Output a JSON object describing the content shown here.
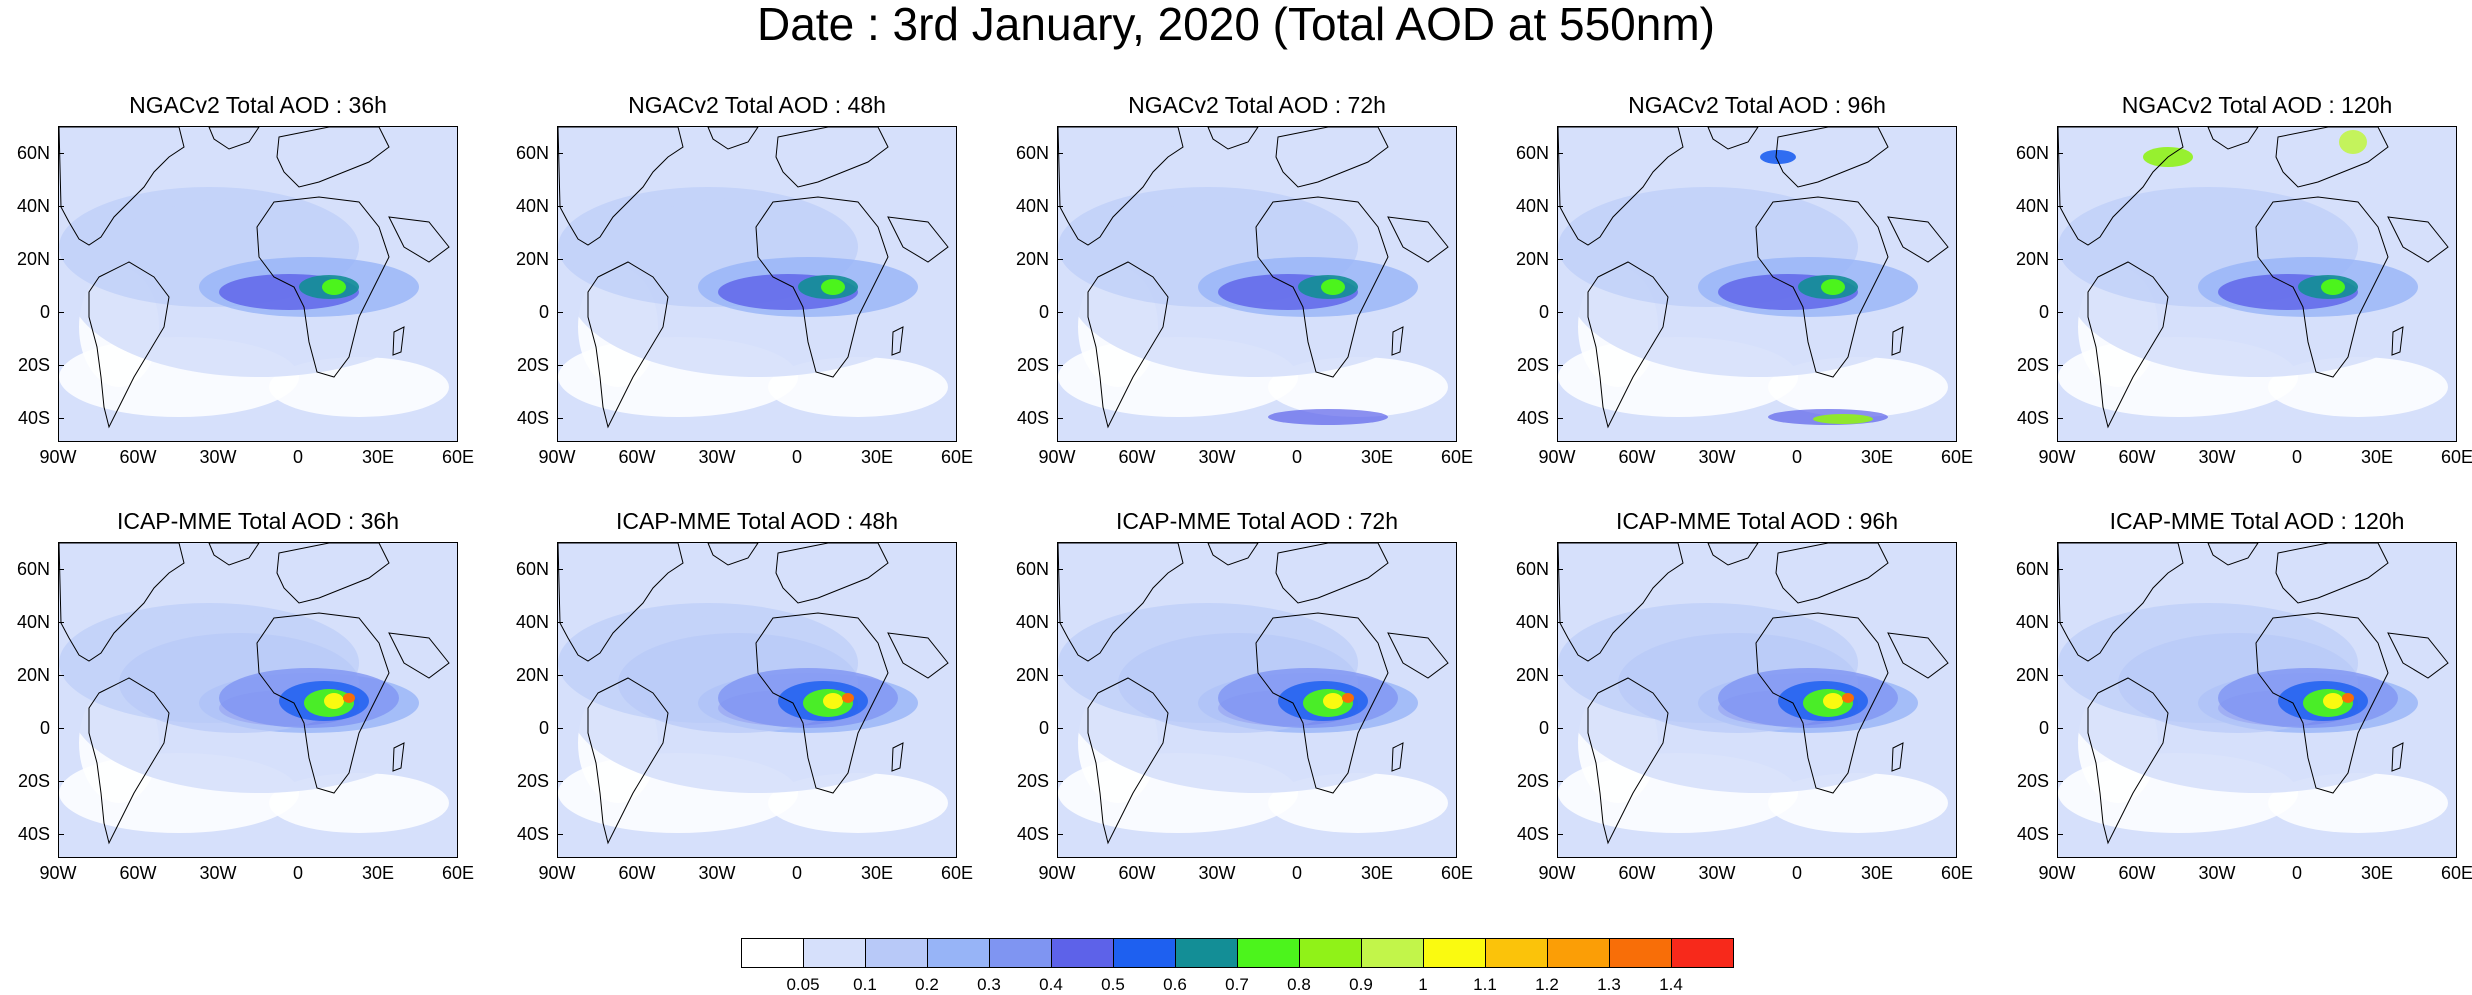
{
  "title": "Date : 3rd January, 2020 (Total AOD at 550nm)",
  "panels": [
    {
      "model": "NGACv2",
      "title": "NGACv2 Total AOD : 36h",
      "lead": "36h"
    },
    {
      "model": "NGACv2",
      "title": "NGACv2 Total AOD : 48h",
      "lead": "48h"
    },
    {
      "model": "NGACv2",
      "title": "NGACv2 Total AOD : 72h",
      "lead": "72h"
    },
    {
      "model": "NGACv2",
      "title": "NGACv2 Total AOD : 96h",
      "lead": "96h"
    },
    {
      "model": "NGACv2",
      "title": "NGACv2 Total AOD : 120h",
      "lead": "120h"
    },
    {
      "model": "ICAP-MME",
      "title": "ICAP-MME Total AOD : 36h",
      "lead": "36h"
    },
    {
      "model": "ICAP-MME",
      "title": "ICAP-MME Total AOD : 48h",
      "lead": "48h"
    },
    {
      "model": "ICAP-MME",
      "title": "ICAP-MME Total AOD : 72h",
      "lead": "72h"
    },
    {
      "model": "ICAP-MME",
      "title": "ICAP-MME Total AOD : 96h",
      "lead": "96h"
    },
    {
      "model": "ICAP-MME",
      "title": "ICAP-MME Total AOD : 120h",
      "lead": "120h"
    }
  ],
  "axes": {
    "lat_ticks": [
      "60N",
      "40N",
      "20N",
      "0",
      "20S",
      "40S"
    ],
    "lon_ticks": [
      "90W",
      "60W",
      "30W",
      "0",
      "30E",
      "60E"
    ]
  },
  "colorbar": {
    "labels": [
      "0.05",
      "0.1",
      "0.2",
      "0.3",
      "0.4",
      "0.5",
      "0.6",
      "0.7",
      "0.8",
      "0.9",
      "1",
      "1.1",
      "1.2",
      "1.3",
      "1.4"
    ],
    "colors": [
      "#ffffff",
      "#d6e0fb",
      "#b8c9f8",
      "#97b4f7",
      "#7f95f2",
      "#5d62e9",
      "#1e60f0",
      "#138e96",
      "#4cf41c",
      "#90f218",
      "#c2f54a",
      "#fafa10",
      "#fbc30a",
      "#fb9e06",
      "#f86e08",
      "#f7291b"
    ]
  }
}
